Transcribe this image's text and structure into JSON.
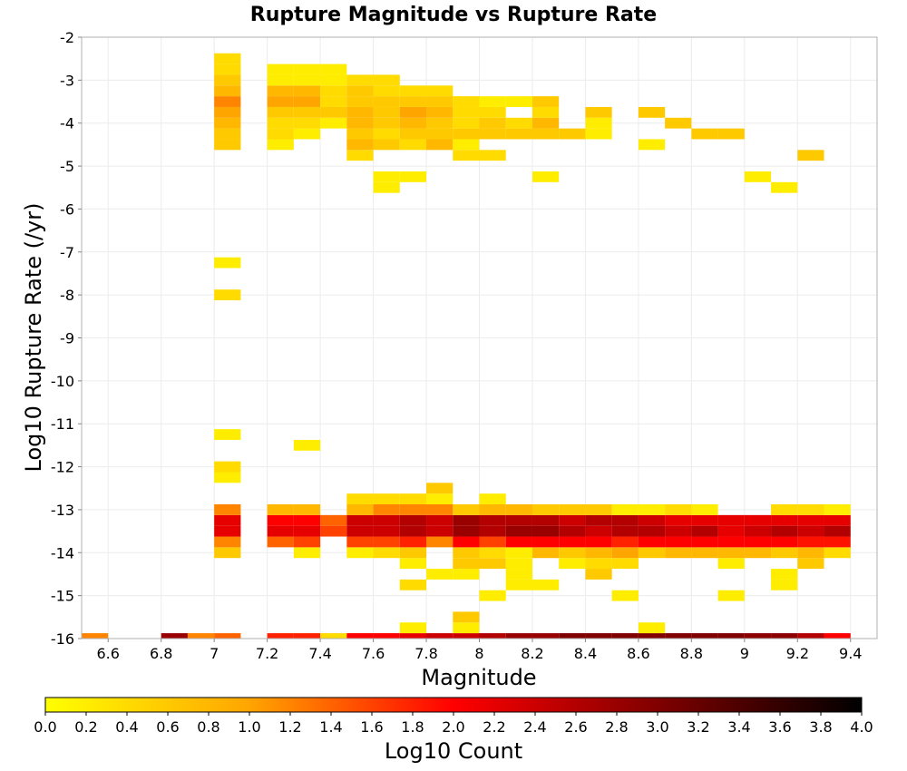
{
  "chart_data": {
    "type": "heatmap",
    "title": "Rupture Magnitude vs Rupture Rate",
    "xlabel": "Magnitude",
    "ylabel": "Log10 Rupture Rate (/yr)",
    "xlim": [
      6.5,
      9.5
    ],
    "ylim": [
      -16,
      -2
    ],
    "x_ticks": [
      "6.6",
      "6.8",
      "7",
      "7.2",
      "7.4",
      "7.6",
      "7.8",
      "8",
      "8.2",
      "8.4",
      "8.6",
      "8.8",
      "9",
      "9.2",
      "9.4"
    ],
    "y_ticks": [
      "-2",
      "-3",
      "-4",
      "-5",
      "-6",
      "-7",
      "-8",
      "-9",
      "-10",
      "-11",
      "-12",
      "-13",
      "-14",
      "-15",
      "-16"
    ],
    "bin_width_x": 0.1,
    "bin_height_y": 0.25,
    "grid": true,
    "colorbar": {
      "label": "Log10 Count",
      "min": 0.0,
      "max": 4.0,
      "ticks": [
        "0.0",
        "0.2",
        "0.4",
        "0.6",
        "0.8",
        "1.0",
        "1.2",
        "1.4",
        "1.6",
        "1.8",
        "2.0",
        "2.2",
        "2.4",
        "2.6",
        "2.8",
        "3.0",
        "3.2",
        "3.4",
        "3.6",
        "3.8",
        "4.0"
      ],
      "colors": [
        "#ffff00",
        "#ffa500",
        "#ff0000",
        "#800000",
        "#000000"
      ]
    },
    "cells": [
      [
        6.55,
        -16.0,
        1.2
      ],
      [
        6.85,
        -16.0,
        2.8
      ],
      [
        6.95,
        -16.0,
        1.2
      ],
      [
        7.05,
        -16.0,
        1.4
      ],
      [
        7.25,
        -16.0,
        1.8
      ],
      [
        7.35,
        -16.0,
        1.8
      ],
      [
        7.45,
        -16.0,
        0.4
      ],
      [
        7.55,
        -16.0,
        2.0
      ],
      [
        7.65,
        -16.0,
        2.0
      ],
      [
        7.75,
        -16.0,
        2.2
      ],
      [
        7.85,
        -16.0,
        2.4
      ],
      [
        7.95,
        -16.0,
        2.4
      ],
      [
        8.05,
        -16.0,
        2.6
      ],
      [
        8.15,
        -16.0,
        2.8
      ],
      [
        8.25,
        -16.0,
        2.8
      ],
      [
        8.35,
        -16.0,
        3.0
      ],
      [
        8.45,
        -16.0,
        3.0
      ],
      [
        8.55,
        -16.0,
        3.0
      ],
      [
        8.65,
        -16.0,
        3.0
      ],
      [
        8.75,
        -16.0,
        3.0
      ],
      [
        8.85,
        -16.0,
        3.0
      ],
      [
        8.95,
        -16.0,
        3.0
      ],
      [
        9.05,
        -16.0,
        2.9
      ],
      [
        9.15,
        -16.0,
        2.9
      ],
      [
        9.25,
        -16.0,
        2.6
      ],
      [
        9.35,
        -16.0,
        2.0
      ],
      [
        7.75,
        -15.75,
        0.2
      ],
      [
        7.95,
        -15.75,
        0.2
      ],
      [
        8.65,
        -15.75,
        0.2
      ],
      [
        7.95,
        -15.5,
        0.6
      ],
      [
        8.55,
        -15.0,
        0.2
      ],
      [
        8.95,
        -15.0,
        0.2
      ],
      [
        8.05,
        -15.0,
        0.2
      ],
      [
        7.75,
        -14.75,
        0.4
      ],
      [
        8.15,
        -14.75,
        0.2
      ],
      [
        8.25,
        -14.75,
        0.2
      ],
      [
        9.15,
        -14.75,
        0.2
      ],
      [
        7.85,
        -14.5,
        0.2
      ],
      [
        7.95,
        -14.5,
        0.2
      ],
      [
        8.15,
        -14.5,
        0.2
      ],
      [
        8.45,
        -14.5,
        0.6
      ],
      [
        9.15,
        -14.5,
        0.2
      ],
      [
        7.75,
        -14.25,
        0.2
      ],
      [
        7.95,
        -14.25,
        0.6
      ],
      [
        8.05,
        -14.25,
        0.6
      ],
      [
        8.15,
        -14.25,
        0.2
      ],
      [
        8.35,
        -14.25,
        0.2
      ],
      [
        8.45,
        -14.25,
        0.4
      ],
      [
        8.55,
        -14.25,
        0.4
      ],
      [
        8.95,
        -14.25,
        0.2
      ],
      [
        9.25,
        -14.25,
        0.6
      ],
      [
        7.05,
        -14.0,
        0.6
      ],
      [
        7.35,
        -14.0,
        0.2
      ],
      [
        7.55,
        -14.0,
        0.2
      ],
      [
        7.65,
        -14.0,
        0.4
      ],
      [
        7.75,
        -14.0,
        0.6
      ],
      [
        7.95,
        -14.0,
        0.6
      ],
      [
        8.05,
        -14.0,
        0.4
      ],
      [
        8.15,
        -14.0,
        0.2
      ],
      [
        8.25,
        -14.0,
        0.8
      ],
      [
        8.35,
        -14.0,
        0.6
      ],
      [
        8.45,
        -14.0,
        0.8
      ],
      [
        8.55,
        -14.0,
        1.0
      ],
      [
        8.65,
        -14.0,
        0.6
      ],
      [
        8.75,
        -14.0,
        0.8
      ],
      [
        8.85,
        -14.0,
        0.8
      ],
      [
        8.95,
        -14.0,
        0.8
      ],
      [
        9.05,
        -14.0,
        0.8
      ],
      [
        9.15,
        -14.0,
        0.6
      ],
      [
        9.25,
        -14.0,
        0.8
      ],
      [
        9.35,
        -14.0,
        0.4
      ],
      [
        7.05,
        -13.75,
        1.2
      ],
      [
        7.25,
        -13.75,
        1.4
      ],
      [
        7.35,
        -13.75,
        1.6
      ],
      [
        7.55,
        -13.75,
        1.6
      ],
      [
        7.65,
        -13.75,
        1.6
      ],
      [
        7.75,
        -13.75,
        1.8
      ],
      [
        7.85,
        -13.75,
        1.2
      ],
      [
        7.95,
        -13.75,
        2.0
      ],
      [
        8.05,
        -13.75,
        1.6
      ],
      [
        8.15,
        -13.75,
        2.0
      ],
      [
        8.25,
        -13.75,
        2.0
      ],
      [
        8.35,
        -13.75,
        2.0
      ],
      [
        8.45,
        -13.75,
        2.0
      ],
      [
        8.55,
        -13.75,
        1.8
      ],
      [
        8.65,
        -13.75,
        2.0
      ],
      [
        8.75,
        -13.75,
        2.0
      ],
      [
        8.85,
        -13.75,
        2.0
      ],
      [
        8.95,
        -13.75,
        2.0
      ],
      [
        9.05,
        -13.75,
        2.0
      ],
      [
        9.15,
        -13.75,
        2.0
      ],
      [
        9.25,
        -13.75,
        1.9
      ],
      [
        9.35,
        -13.75,
        1.9
      ],
      [
        7.05,
        -13.5,
        2.2
      ],
      [
        7.25,
        -13.5,
        2.2
      ],
      [
        7.35,
        -13.5,
        2.2
      ],
      [
        7.45,
        -13.5,
        1.6
      ],
      [
        7.55,
        -13.5,
        2.4
      ],
      [
        7.65,
        -13.5,
        2.4
      ],
      [
        7.75,
        -13.5,
        2.6
      ],
      [
        7.85,
        -13.5,
        2.4
      ],
      [
        7.95,
        -13.5,
        2.8
      ],
      [
        8.05,
        -13.5,
        2.6
      ],
      [
        8.15,
        -13.5,
        2.8
      ],
      [
        8.25,
        -13.5,
        2.8
      ],
      [
        8.35,
        -13.5,
        2.6
      ],
      [
        8.45,
        -13.5,
        2.4
      ],
      [
        8.55,
        -13.5,
        2.6
      ],
      [
        8.65,
        -13.5,
        2.6
      ],
      [
        8.75,
        -13.5,
        2.4
      ],
      [
        8.85,
        -13.5,
        2.6
      ],
      [
        8.95,
        -13.5,
        2.2
      ],
      [
        9.05,
        -13.5,
        2.4
      ],
      [
        9.15,
        -13.5,
        2.6
      ],
      [
        9.25,
        -13.5,
        2.4
      ],
      [
        9.35,
        -13.5,
        2.6
      ],
      [
        7.05,
        -13.25,
        2.2
      ],
      [
        7.25,
        -13.25,
        2.0
      ],
      [
        7.35,
        -13.25,
        2.0
      ],
      [
        7.45,
        -13.25,
        1.4
      ],
      [
        7.55,
        -13.25,
        2.4
      ],
      [
        7.65,
        -13.25,
        2.4
      ],
      [
        7.75,
        -13.25,
        2.6
      ],
      [
        7.85,
        -13.25,
        2.4
      ],
      [
        7.95,
        -13.25,
        2.8
      ],
      [
        8.05,
        -13.25,
        2.6
      ],
      [
        8.15,
        -13.25,
        2.6
      ],
      [
        8.25,
        -13.25,
        2.6
      ],
      [
        8.35,
        -13.25,
        2.4
      ],
      [
        8.45,
        -13.25,
        2.6
      ],
      [
        8.55,
        -13.25,
        2.6
      ],
      [
        8.65,
        -13.25,
        2.4
      ],
      [
        8.75,
        -13.25,
        2.2
      ],
      [
        8.85,
        -13.25,
        2.2
      ],
      [
        8.95,
        -13.25,
        2.2
      ],
      [
        9.05,
        -13.25,
        2.2
      ],
      [
        9.15,
        -13.25,
        2.2
      ],
      [
        9.25,
        -13.25,
        2.2
      ],
      [
        9.35,
        -13.25,
        2.2
      ],
      [
        7.05,
        -13.0,
        1.2
      ],
      [
        7.25,
        -13.0,
        0.8
      ],
      [
        7.35,
        -13.0,
        0.8
      ],
      [
        7.55,
        -13.0,
        0.8
      ],
      [
        7.65,
        -13.0,
        1.2
      ],
      [
        7.75,
        -13.0,
        1.2
      ],
      [
        7.85,
        -13.0,
        1.2
      ],
      [
        7.95,
        -13.0,
        0.6
      ],
      [
        8.05,
        -13.0,
        0.8
      ],
      [
        8.15,
        -13.0,
        0.8
      ],
      [
        8.25,
        -13.0,
        0.6
      ],
      [
        8.35,
        -13.0,
        0.6
      ],
      [
        8.45,
        -13.0,
        0.6
      ],
      [
        8.55,
        -13.0,
        0.2
      ],
      [
        8.65,
        -13.0,
        0.2
      ],
      [
        8.75,
        -13.0,
        0.4
      ],
      [
        8.85,
        -13.0,
        0.2
      ],
      [
        9.15,
        -13.0,
        0.4
      ],
      [
        9.25,
        -13.0,
        0.4
      ],
      [
        9.35,
        -13.0,
        0.2
      ],
      [
        7.55,
        -12.75,
        0.4
      ],
      [
        7.65,
        -12.75,
        0.4
      ],
      [
        7.75,
        -12.75,
        0.4
      ],
      [
        7.85,
        -12.75,
        0.2
      ],
      [
        8.05,
        -12.75,
        0.2
      ],
      [
        7.85,
        -12.5,
        0.6
      ],
      [
        7.05,
        -12.25,
        0.2
      ],
      [
        7.05,
        -12.0,
        0.4
      ],
      [
        7.35,
        -11.5,
        0.2
      ],
      [
        7.05,
        -11.25,
        0.2
      ],
      [
        7.05,
        -8.0,
        0.4
      ],
      [
        7.05,
        -7.25,
        0.2
      ],
      [
        7.65,
        -5.5,
        0.2
      ],
      [
        9.15,
        -5.5,
        0.2
      ],
      [
        7.65,
        -5.25,
        0.2
      ],
      [
        7.75,
        -5.25,
        0.2
      ],
      [
        8.25,
        -5.25,
        0.2
      ],
      [
        9.05,
        -5.25,
        0.2
      ],
      [
        7.55,
        -4.75,
        0.4
      ],
      [
        7.95,
        -4.75,
        0.4
      ],
      [
        8.05,
        -4.75,
        0.4
      ],
      [
        9.25,
        -4.75,
        0.6
      ],
      [
        7.05,
        -4.5,
        0.6
      ],
      [
        7.25,
        -4.5,
        0.2
      ],
      [
        7.55,
        -4.5,
        0.8
      ],
      [
        7.65,
        -4.5,
        0.6
      ],
      [
        7.75,
        -4.5,
        0.4
      ],
      [
        7.85,
        -4.5,
        0.8
      ],
      [
        7.95,
        -4.5,
        0.2
      ],
      [
        8.65,
        -4.5,
        0.2
      ],
      [
        7.05,
        -4.25,
        0.6
      ],
      [
        7.25,
        -4.25,
        0.4
      ],
      [
        7.35,
        -4.25,
        0.2
      ],
      [
        7.55,
        -4.25,
        0.6
      ],
      [
        7.65,
        -4.25,
        0.4
      ],
      [
        7.75,
        -4.25,
        0.6
      ],
      [
        7.85,
        -4.25,
        0.6
      ],
      [
        7.95,
        -4.25,
        0.6
      ],
      [
        8.05,
        -4.25,
        0.6
      ],
      [
        8.15,
        -4.25,
        0.6
      ],
      [
        8.25,
        -4.25,
        0.6
      ],
      [
        8.35,
        -4.25,
        0.6
      ],
      [
        8.45,
        -4.25,
        0.2
      ],
      [
        8.85,
        -4.25,
        0.6
      ],
      [
        8.95,
        -4.25,
        0.6
      ],
      [
        7.05,
        -4.0,
        0.8
      ],
      [
        7.25,
        -4.0,
        0.4
      ],
      [
        7.35,
        -4.0,
        0.4
      ],
      [
        7.45,
        -4.0,
        0.2
      ],
      [
        7.55,
        -4.0,
        0.8
      ],
      [
        7.65,
        -4.0,
        0.6
      ],
      [
        7.75,
        -4.0,
        0.8
      ],
      [
        7.85,
        -4.0,
        0.6
      ],
      [
        7.95,
        -4.0,
        0.4
      ],
      [
        8.05,
        -4.0,
        0.6
      ],
      [
        8.15,
        -4.0,
        0.4
      ],
      [
        8.25,
        -4.0,
        0.8
      ],
      [
        8.45,
        -4.0,
        0.2
      ],
      [
        8.75,
        -4.0,
        0.6
      ],
      [
        7.05,
        -3.75,
        1.0
      ],
      [
        7.25,
        -3.75,
        0.6
      ],
      [
        7.35,
        -3.75,
        0.6
      ],
      [
        7.45,
        -3.75,
        0.6
      ],
      [
        7.55,
        -3.75,
        0.8
      ],
      [
        7.65,
        -3.75,
        0.6
      ],
      [
        7.75,
        -3.75,
        1.0
      ],
      [
        7.85,
        -3.75,
        0.8
      ],
      [
        7.95,
        -3.75,
        0.4
      ],
      [
        8.05,
        -3.75,
        0.4
      ],
      [
        8.25,
        -3.75,
        0.4
      ],
      [
        8.45,
        -3.75,
        0.6
      ],
      [
        8.65,
        -3.75,
        0.6
      ],
      [
        7.05,
        -3.5,
        1.2
      ],
      [
        7.25,
        -3.5,
        1.0
      ],
      [
        7.35,
        -3.5,
        1.0
      ],
      [
        7.45,
        -3.5,
        0.4
      ],
      [
        7.55,
        -3.5,
        0.6
      ],
      [
        7.65,
        -3.5,
        0.6
      ],
      [
        7.75,
        -3.5,
        0.6
      ],
      [
        7.85,
        -3.5,
        0.6
      ],
      [
        7.95,
        -3.5,
        0.4
      ],
      [
        8.05,
        -3.5,
        0.2
      ],
      [
        8.15,
        -3.5,
        0.2
      ],
      [
        8.25,
        -3.5,
        0.6
      ],
      [
        7.05,
        -3.25,
        0.8
      ],
      [
        7.25,
        -3.25,
        0.8
      ],
      [
        7.35,
        -3.25,
        0.8
      ],
      [
        7.45,
        -3.25,
        0.4
      ],
      [
        7.55,
        -3.25,
        0.6
      ],
      [
        7.65,
        -3.25,
        0.4
      ],
      [
        7.75,
        -3.25,
        0.4
      ],
      [
        7.85,
        -3.25,
        0.4
      ],
      [
        7.05,
        -3.0,
        0.6
      ],
      [
        7.25,
        -3.0,
        0.2
      ],
      [
        7.35,
        -3.0,
        0.2
      ],
      [
        7.45,
        -3.0,
        0.2
      ],
      [
        7.55,
        -3.0,
        0.4
      ],
      [
        7.65,
        -3.0,
        0.4
      ],
      [
        7.05,
        -2.75,
        0.4
      ],
      [
        7.25,
        -2.75,
        0.2
      ],
      [
        7.35,
        -2.75,
        0.2
      ],
      [
        7.45,
        -2.75,
        0.2
      ],
      [
        7.05,
        -2.5,
        0.4
      ]
    ]
  }
}
